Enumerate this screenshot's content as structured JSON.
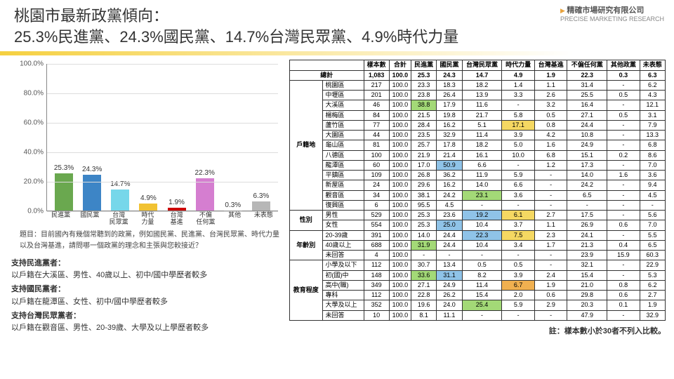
{
  "logo": {
    "cn": "精確市場研究有限公司",
    "en": "PRECISE MARKETING RESEARCH"
  },
  "title_l1": "桃園市最新政黨傾向：",
  "title_l2": "25.3%民進黨、24.3%國民黨、14.7%台灣民眾黨、4.9%時代力量",
  "chart": {
    "ylim": 100,
    "yticks": [
      0,
      20,
      40,
      60,
      80,
      100
    ],
    "bars": [
      {
        "label": "民進黨",
        "sub": "",
        "v": 25.3,
        "color": "#6aa84f"
      },
      {
        "label": "國民黨",
        "sub": "",
        "v": 24.3,
        "color": "#3d85c6"
      },
      {
        "label": "台灣",
        "sub": "民眾黨",
        "v": 14.7,
        "color": "#76d7ea"
      },
      {
        "label": "時代",
        "sub": "力量",
        "v": 4.9,
        "color": "#f1c232"
      },
      {
        "label": "台灣",
        "sub": "基進",
        "v": 1.9,
        "color": "#cc0000"
      },
      {
        "label": "不偏",
        "sub": "任何黨",
        "v": 22.3,
        "color": "#d57ed0"
      },
      {
        "label": "其他",
        "sub": "",
        "v": 0.3,
        "color": "#999999"
      },
      {
        "label": "未表態",
        "sub": "",
        "v": 6.3,
        "color": "#b7b7b7"
      }
    ]
  },
  "question": "題目：目前國內有幾個常聽到的政黨，例如國民黨、民進黨、台灣民眾黨、時代力量以及台灣基進，請問哪一個政黨的理念和主張與您較接近？",
  "notes": [
    {
      "h": "支持民進黨者：",
      "t": "以戶籍在大溪區、男性、40歲以上、初中/國中學歷者較多"
    },
    {
      "h": "支持國民黨者：",
      "t": "以戶籍在龍潭區、女性、初中/國中學歷者較多"
    },
    {
      "h": "支持台灣民眾黨者：",
      "t": "以戶籍在觀音區、男性、20-39歲、大學及以上學歷者較多"
    }
  ],
  "table": {
    "cols": [
      "樣本數",
      "合計",
      "民進黨",
      "國民黨",
      "台灣民眾黨",
      "時代力量",
      "台灣基進",
      "不偏任何黨",
      "其他政黨",
      "未表態"
    ],
    "total": [
      "總計",
      "1,083",
      "100.0",
      "25.3",
      "24.3",
      "14.7",
      "4.9",
      "1.9",
      "22.3",
      "0.3",
      "6.3"
    ],
    "groups": [
      {
        "name": "戶籍地",
        "rows": [
          [
            "桃園區",
            "217",
            "100.0",
            "23.3",
            "18.3",
            "18.2",
            "1.4",
            "1.1",
            "31.4",
            "-",
            "6.2"
          ],
          [
            "中壢區",
            "201",
            "100.0",
            "23.8",
            "26.4",
            "13.9",
            "3.3",
            "2.6",
            "25.5",
            "0.5",
            "4.3"
          ],
          [
            "大溪區",
            "46",
            "100.0",
            [
              "38.8",
              "g"
            ],
            "17.9",
            "11.6",
            "-",
            "3.2",
            "16.4",
            "-",
            "12.1"
          ],
          [
            "楊梅區",
            "84",
            "100.0",
            "21.5",
            "19.8",
            "21.7",
            "5.8",
            "0.5",
            "27.1",
            "0.5",
            "3.1"
          ],
          [
            "蘆竹區",
            "77",
            "100.0",
            "28.4",
            "16.2",
            "5.1",
            [
              "17.1",
              "y"
            ],
            "0.8",
            "24.4",
            "-",
            "7.9"
          ],
          [
            "大園區",
            "44",
            "100.0",
            "23.5",
            "32.9",
            "11.4",
            "3.9",
            "4.2",
            "10.8",
            "-",
            "13.3"
          ],
          [
            "龜山區",
            "81",
            "100.0",
            "25.7",
            "17.8",
            "18.2",
            "5.0",
            "1.6",
            "24.9",
            "-",
            "6.8"
          ],
          [
            "八德區",
            "100",
            "100.0",
            "21.9",
            "21.4",
            "16.1",
            "10.0",
            "6.8",
            "15.1",
            "0.2",
            "8.6"
          ],
          [
            "龍潭區",
            "60",
            "100.0",
            "17.0",
            [
              "50.9",
              "b"
            ],
            "6.6",
            "-",
            "1.2",
            "17.3",
            "-",
            "7.0"
          ],
          [
            "平鎮區",
            "109",
            "100.0",
            "26.8",
            "36.2",
            "11.9",
            "5.9",
            "-",
            "14.0",
            "1.6",
            "3.6"
          ],
          [
            "新屋區",
            "24",
            "100.0",
            "29.6",
            "16.2",
            "14.0",
            "6.6",
            "-",
            "24.2",
            "-",
            "9.4"
          ],
          [
            "觀音區",
            "34",
            "100.0",
            "38.1",
            "24.2",
            [
              "23.1",
              "g"
            ],
            "3.6",
            "-",
            "6.5",
            "-",
            "4.5"
          ],
          [
            "復興區",
            "6",
            "100.0",
            "95.5",
            "4.5",
            "-",
            "-",
            "-",
            "-",
            "-",
            "-"
          ]
        ]
      },
      {
        "name": "性別",
        "rows": [
          [
            "男性",
            "529",
            "100.0",
            "25.3",
            "23.6",
            [
              "19.2",
              "b"
            ],
            [
              "6.1",
              "y"
            ],
            "2.7",
            "17.5",
            "-",
            "5.6"
          ],
          [
            "女性",
            "554",
            "100.0",
            "25.3",
            [
              "25.0",
              "b"
            ],
            "10.4",
            "3.7",
            "1.1",
            "26.9",
            "0.6",
            "7.0"
          ]
        ]
      },
      {
        "name": "年齡別",
        "rows": [
          [
            "20-39歲",
            "391",
            "100.0",
            "14.0",
            "24.4",
            [
              "22.3",
              "b"
            ],
            [
              "7.5",
              "y"
            ],
            "2.3",
            "24.1",
            "-",
            "5.5"
          ],
          [
            "40歲以上",
            "688",
            "100.0",
            [
              "31.9",
              "g"
            ],
            "24.4",
            "10.4",
            "3.4",
            "1.7",
            "21.3",
            "0.4",
            "6.5"
          ],
          [
            "未回答",
            "4",
            "100.0",
            "-",
            "-",
            "-",
            "-",
            "-",
            "23.9",
            "15.9",
            "60.3"
          ]
        ]
      },
      {
        "name": "教育程度",
        "rows": [
          [
            "小學及以下",
            "112",
            "100.0",
            "30.7",
            "13.4",
            "0.5",
            "0.5",
            "-",
            "32.1",
            "-",
            "22.9"
          ],
          [
            "初(國)中",
            "148",
            "100.0",
            [
              "33.6",
              "g"
            ],
            [
              "31.1",
              "b"
            ],
            "8.2",
            "3.9",
            "2.4",
            "15.4",
            "-",
            "5.3"
          ],
          [
            "高中(職)",
            "349",
            "100.0",
            "27.1",
            "24.9",
            "11.4",
            [
              "6.7",
              "o"
            ],
            "1.9",
            "21.0",
            "0.8",
            "6.2"
          ],
          [
            "專科",
            "112",
            "100.0",
            "22.8",
            "26.2",
            "15.4",
            "2.0",
            "0.6",
            "29.8",
            "0.6",
            "2.7"
          ],
          [
            "大學及以上",
            "352",
            "100.0",
            "19.6",
            "24.0",
            [
              "25.4",
              "g"
            ],
            "5.9",
            "2.9",
            "20.3",
            "0.1",
            "1.9"
          ],
          [
            "未回答",
            "10",
            "100.0",
            "8.1",
            "11.1",
            "-",
            "-",
            "-",
            "47.9",
            "-",
            "32.9"
          ]
        ]
      }
    ]
  },
  "footnote": "註：樣本數小於30者不列入比較。"
}
